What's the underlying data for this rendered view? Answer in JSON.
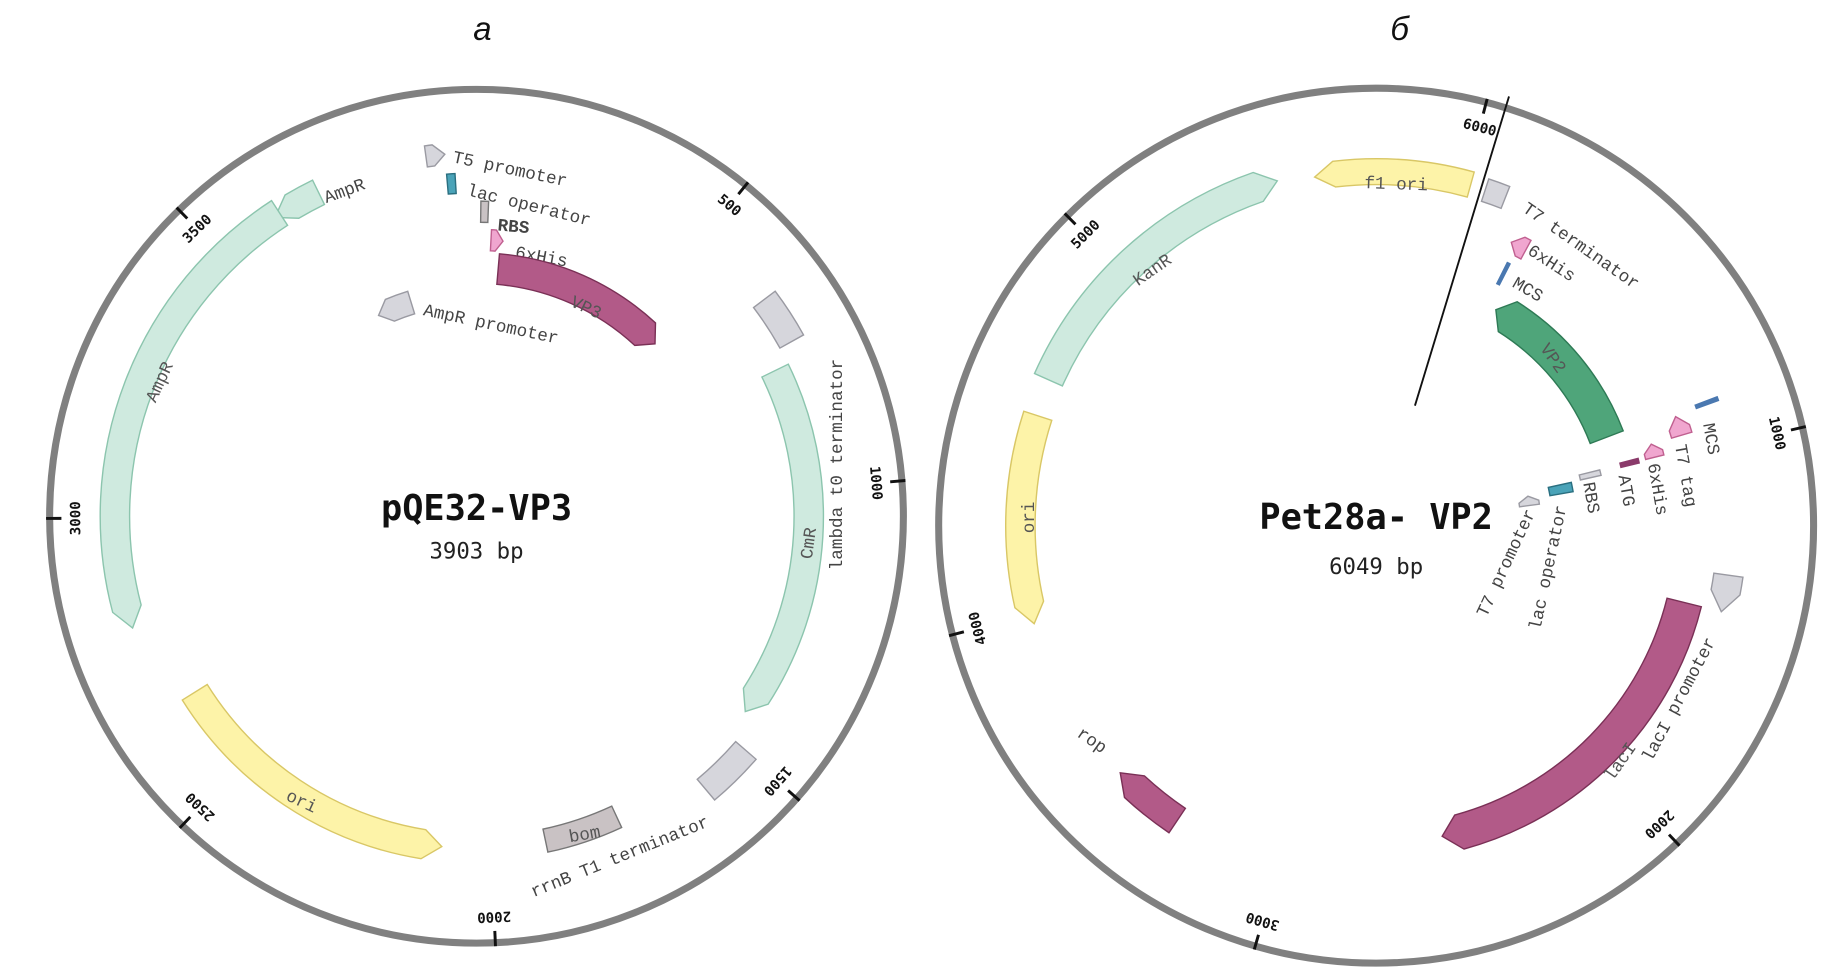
{
  "maps": [
    {
      "panel_label": "а",
      "name": "pQE32-VP3",
      "size": "3903 bp",
      "ticks": [
        "500",
        "1000",
        "1500",
        "2000",
        "2500",
        "3000",
        "3500"
      ],
      "features": [
        "T5 promoter",
        "lac operator",
        "RBS",
        "6xHis",
        "VP3",
        "AmpR promoter",
        "AmpR",
        "AmpR",
        "lambda t0 terminator",
        "CmR",
        "rrnB T1 terminator",
        "bom",
        "ori"
      ]
    },
    {
      "panel_label": "б",
      "name": "Pet28a- VP2",
      "size": "6049 bp",
      "ticks": [
        "1000",
        "2000",
        "3000",
        "4000",
        "5000",
        "6000"
      ],
      "features": [
        "f1 ori",
        "T7 terminator",
        "6xHis",
        "MCS",
        "VP2",
        "MCS",
        "T7 tag",
        "6xHis",
        "ATG",
        "RBS",
        "lac operator",
        "T7 promoter",
        "lacI promoter",
        "lacI",
        "rop",
        "ori",
        "KanR"
      ]
    }
  ],
  "colors": {
    "backbone": "#808080",
    "cds_magenta": "#b25a88",
    "cds_green": "#4fa57a",
    "resistance_teal": "#cfeadf",
    "origin_yellow": "#fdf3a8",
    "regulatory_gray": "#d6d6dc",
    "tag_pink": "#f0a6cf",
    "operator_teal": "#4aa3b8"
  }
}
